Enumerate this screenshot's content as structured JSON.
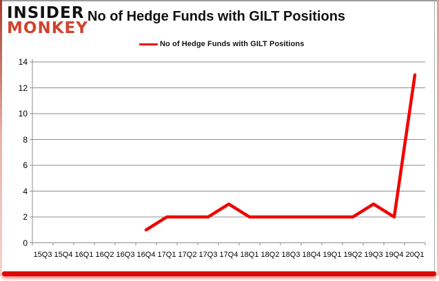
{
  "page": {
    "logo_line1": "INSIDER",
    "logo_line2": "MONKEY",
    "title": "No of Hedge Funds with GILT Positions",
    "legend_label": "No of Hedge Funds with GILT Positions"
  },
  "colors": {
    "series_line": "#f20000",
    "logo_red": "#d0442e",
    "gridline": "#8c8c8c",
    "axis_line": "#8c8c8c",
    "text": "#000000",
    "bottom_glow": "#dd0806"
  },
  "chart_data": {
    "type": "line",
    "title": "No of Hedge Funds with GILT Positions",
    "categories": [
      "15Q3",
      "15Q4",
      "16Q1",
      "16Q2",
      "16Q3",
      "16Q4",
      "17Q1",
      "17Q2",
      "17Q3",
      "17Q4",
      "18Q1",
      "18Q2",
      "18Q3",
      "18Q4",
      "19Q1",
      "19Q2",
      "19Q3",
      "19Q4",
      "20Q1"
    ],
    "series": [
      {
        "name": "No of Hedge Funds with GILT Positions",
        "values": [
          null,
          null,
          null,
          null,
          null,
          1,
          2,
          2,
          2,
          3,
          2,
          2,
          2,
          2,
          2,
          2,
          3,
          2,
          13
        ]
      }
    ],
    "ylim": [
      0,
      14
    ],
    "ytick_labels": [
      "0",
      "2",
      "4",
      "6",
      "8",
      "10",
      "12",
      "14"
    ],
    "ytick_values": [
      0,
      2,
      4,
      6,
      8,
      10,
      12,
      14
    ],
    "grid": true,
    "legend_position": "top-center"
  }
}
